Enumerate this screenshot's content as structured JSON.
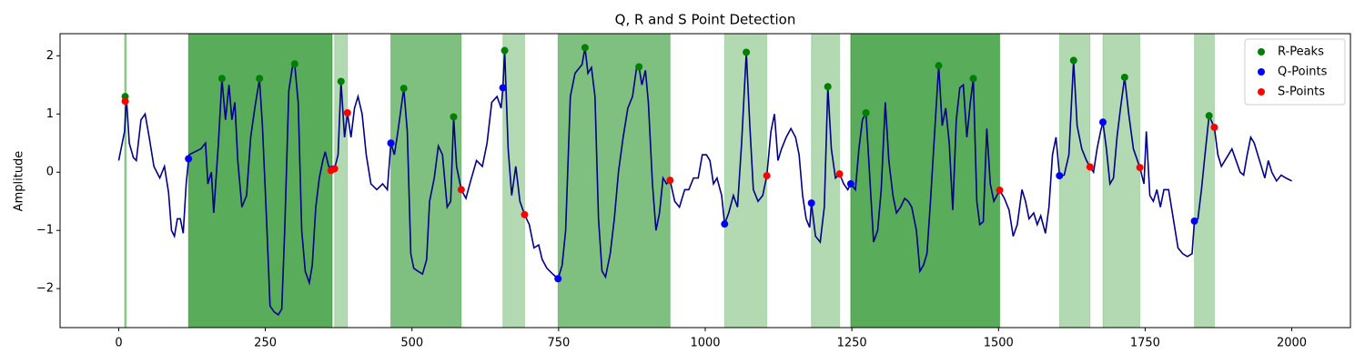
{
  "chart_data": {
    "type": "line",
    "title": "Q, R and S Point Detection",
    "ylabel": "Amplitude",
    "xlim": [
      -100,
      2100
    ],
    "ylim": [
      -2.67,
      2.38
    ],
    "xticks": [
      0,
      250,
      500,
      750,
      1000,
      1250,
      1500,
      1750,
      2000
    ],
    "yticks": [
      {
        "value": -2,
        "label": "−2"
      },
      {
        "value": -1,
        "label": "−1"
      },
      0,
      1,
      2
    ],
    "legend": "upper right",
    "spans": [
      {
        "start": 10,
        "end": 13,
        "color": "green",
        "alpha": 0.4
      },
      {
        "start": 119,
        "end": 364,
        "color": "green",
        "alpha": 0.65
      },
      {
        "start": 368,
        "end": 390,
        "color": "green",
        "alpha": 0.3
      },
      {
        "start": 464,
        "end": 584,
        "color": "green",
        "alpha": 0.5
      },
      {
        "start": 655,
        "end": 692,
        "color": "green",
        "alpha": 0.3
      },
      {
        "start": 749,
        "end": 940,
        "color": "green",
        "alpha": 0.5
      },
      {
        "start": 1033,
        "end": 1105,
        "color": "green",
        "alpha": 0.3
      },
      {
        "start": 1181,
        "end": 1229,
        "color": "green",
        "alpha": 0.3
      },
      {
        "start": 1248,
        "end": 1502,
        "color": "green",
        "alpha": 0.65
      },
      {
        "start": 1604,
        "end": 1656,
        "color": "green",
        "alpha": 0.3
      },
      {
        "start": 1678,
        "end": 1741,
        "color": "green",
        "alpha": 0.3
      },
      {
        "start": 1834,
        "end": 1868,
        "color": "green",
        "alpha": 0.3
      }
    ],
    "series": [
      {
        "type": "line",
        "color": "#00008b",
        "x": [
          0,
          10,
          13,
          18,
          25,
          30,
          38,
          45,
          52,
          60,
          70,
          78,
          85,
          90,
          95,
          100,
          105,
          110,
          115,
          120,
          130,
          140,
          148,
          152,
          158,
          162,
          170,
          176,
          182,
          188,
          193,
          198,
          203,
          210,
          218,
          225,
          232,
          240,
          245,
          252,
          258,
          265,
          272,
          278,
          283,
          290,
          296,
          300,
          306,
          312,
          318,
          325,
          330,
          336,
          342,
          348,
          352,
          358,
          364,
          368,
          374,
          379,
          385,
          390,
          396,
          402,
          408,
          415,
          422,
          430,
          440,
          450,
          458,
          464,
          470,
          476,
          486,
          492,
          498,
          503,
          510,
          518,
          525,
          530,
          538,
          545,
          552,
          560,
          566,
          571,
          576,
          584,
          592,
          600,
          610,
          620,
          628,
          636,
          645,
          652,
          655,
          658,
          664,
          670,
          677,
          684,
          692,
          700,
          708,
          716,
          722,
          730,
          740,
          749,
          756,
          762,
          770,
          778,
          786,
          790,
          795,
          800,
          806,
          812,
          818,
          824,
          830,
          838,
          845,
          852,
          860,
          868,
          876,
          883,
          887,
          892,
          898,
          903,
          910,
          916,
          922,
          928,
          934,
          940,
          948,
          956,
          965,
          972,
          980,
          988,
          995,
          1002,
          1008,
          1014,
          1020,
          1028,
          1033,
          1040,
          1048,
          1055,
          1062,
          1070,
          1076,
          1082,
          1090,
          1098,
          1105,
          1112,
          1118,
          1124,
          1130,
          1138,
          1146,
          1154,
          1160,
          1166,
          1172,
          1178,
          1181,
          1188,
          1196,
          1203,
          1209,
          1215,
          1222,
          1229,
          1236,
          1243,
          1248,
          1256,
          1262,
          1268,
          1274,
          1280,
          1287,
          1294,
          1300,
          1307,
          1313,
          1320,
          1326,
          1333,
          1340,
          1346,
          1352,
          1360,
          1366,
          1372,
          1378,
          1384,
          1390,
          1398,
          1404,
          1410,
          1416,
          1422,
          1428,
          1434,
          1440,
          1446,
          1452,
          1457,
          1463,
          1468,
          1474,
          1480,
          1486,
          1492,
          1502,
          1510,
          1518,
          1525,
          1532,
          1540,
          1546,
          1552,
          1560,
          1566,
          1572,
          1580,
          1586,
          1592,
          1598,
          1604,
          1612,
          1620,
          1628,
          1634,
          1642,
          1650,
          1656,
          1662,
          1668,
          1674,
          1678,
          1684,
          1690,
          1696,
          1702,
          1708,
          1715,
          1722,
          1730,
          1741,
          1748,
          1752,
          1758,
          1764,
          1770,
          1776,
          1782,
          1790,
          1798,
          1806,
          1814,
          1822,
          1830,
          1834,
          1840,
          1846,
          1852,
          1859,
          1868,
          1874,
          1880,
          1886,
          1892,
          1898,
          1905,
          1912,
          1918,
          1924,
          1930,
          1936,
          1942,
          1948,
          1954,
          1960,
          1966,
          1974,
          1982,
          1990,
          2000
        ],
        "values": [
          0.2,
          0.7,
          1.3,
          0.5,
          0.25,
          0.2,
          0.9,
          1.0,
          0.6,
          0.1,
          -0.1,
          0.1,
          -0.35,
          -1.0,
          -1.1,
          -0.8,
          -0.8,
          -1.05,
          -0.2,
          0.3,
          0.35,
          0.4,
          0.5,
          -0.2,
          0.0,
          -0.7,
          0.5,
          1.6,
          0.9,
          1.5,
          0.9,
          1.2,
          0.2,
          -0.6,
          -0.4,
          0.6,
          1.1,
          1.6,
          0.8,
          -0.8,
          -2.3,
          -2.4,
          -2.45,
          -2.35,
          -1.0,
          1.4,
          1.8,
          1.86,
          1.2,
          -1.0,
          -1.7,
          -1.9,
          -1.6,
          -0.6,
          -0.1,
          0.2,
          0.35,
          0.1,
          0.05,
          0.06,
          0.3,
          1.56,
          0.6,
          1.02,
          0.6,
          1.1,
          1.3,
          1.0,
          0.3,
          -0.2,
          -0.3,
          -0.2,
          -0.3,
          0.5,
          0.3,
          0.7,
          1.44,
          0.7,
          -1.4,
          -1.65,
          -1.7,
          -1.75,
          -1.5,
          -0.5,
          -0.1,
          0.45,
          0.3,
          -0.6,
          -0.5,
          0.95,
          0.1,
          -0.3,
          -0.45,
          -0.15,
          0.2,
          0.1,
          0.5,
          1.2,
          1.3,
          1.1,
          1.45,
          2.09,
          0.4,
          -0.4,
          0.1,
          -0.5,
          -0.73,
          -0.9,
          -1.3,
          -1.25,
          -1.5,
          -1.65,
          -1.75,
          -1.83,
          -1.6,
          -1.0,
          1.3,
          1.7,
          1.8,
          1.85,
          2.14,
          1.7,
          1.8,
          1.3,
          -0.8,
          -1.7,
          -1.8,
          -1.4,
          -0.8,
          0.0,
          0.6,
          1.1,
          1.3,
          1.8,
          1.81,
          1.5,
          1.75,
          1.2,
          -0.2,
          -1.0,
          -0.7,
          -0.1,
          -0.2,
          -0.14,
          -0.5,
          -0.6,
          -0.3,
          -0.3,
          -0.1,
          -0.1,
          0.3,
          0.3,
          0.2,
          -0.2,
          -0.1,
          -0.4,
          -0.89,
          -0.7,
          -0.4,
          -0.6,
          0.5,
          2.06,
          0.8,
          -0.3,
          -0.5,
          -0.4,
          -0.06,
          0.7,
          1.0,
          0.2,
          0.4,
          0.6,
          0.75,
          0.6,
          0.3,
          -0.4,
          -0.8,
          -0.95,
          -0.53,
          -1.1,
          -1.2,
          -0.6,
          1.47,
          0.4,
          -0.1,
          -0.03,
          -0.2,
          -0.3,
          -0.2,
          -0.3,
          0.4,
          0.9,
          1.02,
          0.0,
          -1.2,
          -1.0,
          -0.3,
          1.2,
          0.2,
          -0.4,
          -0.7,
          -0.6,
          -0.45,
          -0.5,
          -0.6,
          -1.0,
          -1.7,
          -1.6,
          -1.4,
          -0.5,
          0.5,
          1.83,
          0.8,
          1.1,
          0.5,
          -0.65,
          0.9,
          1.45,
          1.5,
          0.6,
          1.2,
          1.61,
          -0.5,
          -0.9,
          -0.85,
          0.75,
          -0.2,
          -0.5,
          -0.31,
          -0.45,
          -0.65,
          -1.1,
          -0.9,
          -0.3,
          -0.5,
          -0.8,
          -0.7,
          -0.9,
          -0.75,
          -1.05,
          -0.6,
          0.3,
          0.6,
          -0.06,
          -0.05,
          0.3,
          1.92,
          0.8,
          0.4,
          0.2,
          0.09,
          0.0,
          0.4,
          0.7,
          0.86,
          0.4,
          -0.2,
          -0.1,
          0.6,
          1.1,
          1.63,
          1.0,
          0.4,
          0.08,
          -0.2,
          0.7,
          -0.4,
          -0.5,
          -0.3,
          -0.6,
          -0.3,
          -0.3,
          -0.8,
          -1.3,
          -1.4,
          -1.45,
          -1.4,
          -0.84,
          -0.8,
          -0.3,
          0.3,
          0.97,
          0.77,
          0.3,
          0.1,
          0.2,
          0.3,
          0.4,
          0.2,
          0.0,
          -0.05,
          0.3,
          0.6,
          0.5,
          0.3,
          0.1,
          -0.1,
          0.2,
          0.0,
          -0.15,
          -0.05,
          -0.1,
          -0.15
        ]
      },
      {
        "type": "scatter",
        "name": "R-Peaks",
        "color": "green",
        "x": [
          11,
          176,
          240,
          300,
          379,
          486,
          571,
          658,
          795,
          887,
          1070,
          1209,
          1274,
          1398,
          1457,
          1628,
          1715,
          1859
        ],
        "values": [
          1.3,
          1.61,
          1.61,
          1.86,
          1.56,
          1.44,
          0.95,
          2.09,
          2.14,
          1.81,
          2.06,
          1.47,
          1.02,
          1.83,
          1.61,
          1.92,
          1.63,
          0.97
        ]
      },
      {
        "type": "scatter",
        "name": "Q-Points",
        "color": "blue",
        "x": [
          119,
          364,
          464,
          655,
          749,
          1033,
          1181,
          1248,
          1604,
          1678,
          1834
        ],
        "values": [
          0.23,
          0.05,
          0.5,
          1.45,
          -1.83,
          -0.89,
          -0.53,
          -0.2,
          -0.06,
          0.86,
          -0.84
        ]
      },
      {
        "type": "scatter",
        "name": "S-Points",
        "color": "red",
        "x": [
          11,
          362,
          368,
          390,
          584,
          692,
          940,
          1105,
          1229,
          1502,
          1656,
          1741,
          1868
        ],
        "values": [
          1.22,
          0.03,
          0.06,
          1.02,
          -0.3,
          -0.73,
          -0.14,
          -0.06,
          -0.03,
          -0.31,
          0.09,
          0.08,
          0.77
        ]
      }
    ]
  }
}
